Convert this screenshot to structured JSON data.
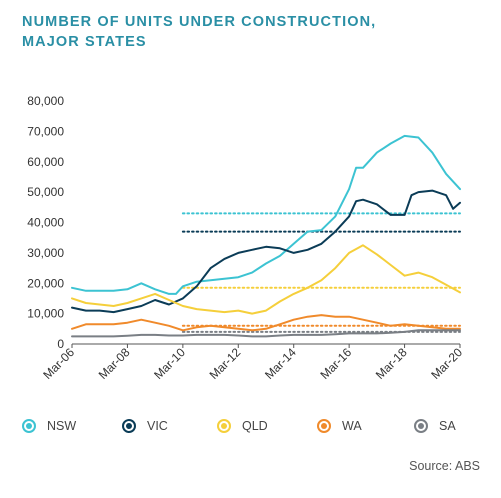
{
  "chart_data": {
    "type": "line",
    "title_lines": [
      "NUMBER OF UNITS UNDER CONSTRUCTION,",
      "MAJOR STATES"
    ],
    "xlabel": "",
    "ylabel": "",
    "x_ticks": [
      "Mar-06",
      "Mar-08",
      "Mar-10",
      "Mar-12",
      "Mar-14",
      "Mar-16",
      "Mar-18",
      "Mar-20"
    ],
    "y_ticks": [
      "0",
      "10,000",
      "20,000",
      "30,000",
      "40,000",
      "50,000",
      "60,000",
      "70,000",
      "80,000"
    ],
    "x_range": [
      2006,
      2020
    ],
    "ylim": [
      0,
      80000
    ],
    "grid": false,
    "legend_position": "bottom",
    "source": "Source: ABS",
    "series": [
      {
        "name": "NSW",
        "color": "#3cc3d2",
        "average": 43000,
        "x": [
          2006.0,
          2006.5,
          2007.0,
          2007.5,
          2008.0,
          2008.5,
          2009.0,
          2009.5,
          2009.75,
          2010.0,
          2010.5,
          2011.0,
          2011.5,
          2012.0,
          2012.5,
          2013.0,
          2013.5,
          2014.0,
          2014.5,
          2015.0,
          2015.5,
          2016.0,
          2016.25,
          2016.5,
          2017.0,
          2017.5,
          2018.0,
          2018.5,
          2019.0,
          2019.5,
          2020.0
        ],
        "values": [
          18500,
          17500,
          17500,
          17500,
          18000,
          20000,
          18000,
          16500,
          16500,
          19000,
          20500,
          21000,
          21500,
          22000,
          23500,
          26500,
          29000,
          33000,
          37000,
          37500,
          42000,
          51000,
          58000,
          58000,
          63000,
          66000,
          68500,
          68000,
          63000,
          56000,
          51000
        ]
      },
      {
        "name": "VIC",
        "color": "#0b3c57",
        "average": 37000,
        "x": [
          2006.0,
          2006.5,
          2007.0,
          2007.5,
          2008.0,
          2008.5,
          2009.0,
          2009.5,
          2010.0,
          2010.5,
          2011.0,
          2011.5,
          2012.0,
          2012.5,
          2013.0,
          2013.5,
          2014.0,
          2014.5,
          2015.0,
          2015.5,
          2016.0,
          2016.25,
          2016.5,
          2017.0,
          2017.5,
          2018.0,
          2018.25,
          2018.5,
          2019.0,
          2019.5,
          2019.75,
          2020.0
        ],
        "values": [
          12000,
          11000,
          11000,
          10500,
          11500,
          12500,
          14500,
          13000,
          15000,
          19000,
          25000,
          28000,
          30000,
          31000,
          32000,
          31500,
          30000,
          31000,
          33000,
          37000,
          42000,
          47000,
          47500,
          46000,
          42500,
          42500,
          49000,
          50000,
          50500,
          49000,
          44500,
          46500
        ]
      },
      {
        "name": "QLD",
        "color": "#f5cf3b",
        "average": 18500,
        "x": [
          2006.0,
          2006.5,
          2007.0,
          2007.5,
          2008.0,
          2008.5,
          2009.0,
          2009.5,
          2010.0,
          2010.5,
          2011.0,
          2011.5,
          2012.0,
          2012.5,
          2013.0,
          2013.5,
          2014.0,
          2014.5,
          2015.0,
          2015.5,
          2016.0,
          2016.5,
          2017.0,
          2017.5,
          2018.0,
          2018.5,
          2019.0,
          2019.5,
          2020.0
        ],
        "values": [
          15000,
          13500,
          13000,
          12500,
          13500,
          15000,
          16500,
          14500,
          12500,
          11500,
          11000,
          10500,
          11000,
          10000,
          11000,
          14000,
          16500,
          18500,
          21000,
          25000,
          30000,
          32500,
          29500,
          26000,
          22500,
          23500,
          22000,
          19500,
          17000
        ]
      },
      {
        "name": "WA",
        "color": "#f08a2b",
        "average": 6000,
        "x": [
          2006.0,
          2006.5,
          2007.0,
          2007.5,
          2008.0,
          2008.5,
          2009.0,
          2009.5,
          2010.0,
          2010.5,
          2011.0,
          2011.5,
          2012.0,
          2012.5,
          2013.0,
          2013.5,
          2014.0,
          2014.5,
          2015.0,
          2015.5,
          2016.0,
          2016.5,
          2017.0,
          2017.5,
          2018.0,
          2018.5,
          2019.0,
          2019.5,
          2020.0
        ],
        "values": [
          5000,
          6500,
          6500,
          6500,
          7000,
          8000,
          7000,
          6000,
          4500,
          5500,
          6000,
          5500,
          5000,
          4500,
          5000,
          6500,
          8000,
          9000,
          9500,
          9000,
          9000,
          8000,
          7000,
          6000,
          6500,
          6000,
          5500,
          5000,
          5000
        ]
      },
      {
        "name": "SA",
        "color": "#7a7f85",
        "average": 4000,
        "x": [
          2006.0,
          2006.5,
          2007.0,
          2007.5,
          2008.0,
          2008.5,
          2009.0,
          2009.5,
          2010.0,
          2010.5,
          2011.0,
          2011.5,
          2012.0,
          2012.5,
          2013.0,
          2013.5,
          2014.0,
          2014.5,
          2015.0,
          2015.5,
          2016.0,
          2016.5,
          2017.0,
          2017.5,
          2018.0,
          2018.5,
          2019.0,
          2019.5,
          2020.0
        ],
        "values": [
          2500,
          2500,
          2500,
          2500,
          2700,
          3000,
          3000,
          2800,
          2800,
          3000,
          3000,
          3000,
          2800,
          2500,
          2500,
          2800,
          3000,
          3000,
          3000,
          3200,
          3500,
          3500,
          3500,
          3700,
          4000,
          4500,
          4500,
          4500,
          4500
        ]
      }
    ]
  }
}
